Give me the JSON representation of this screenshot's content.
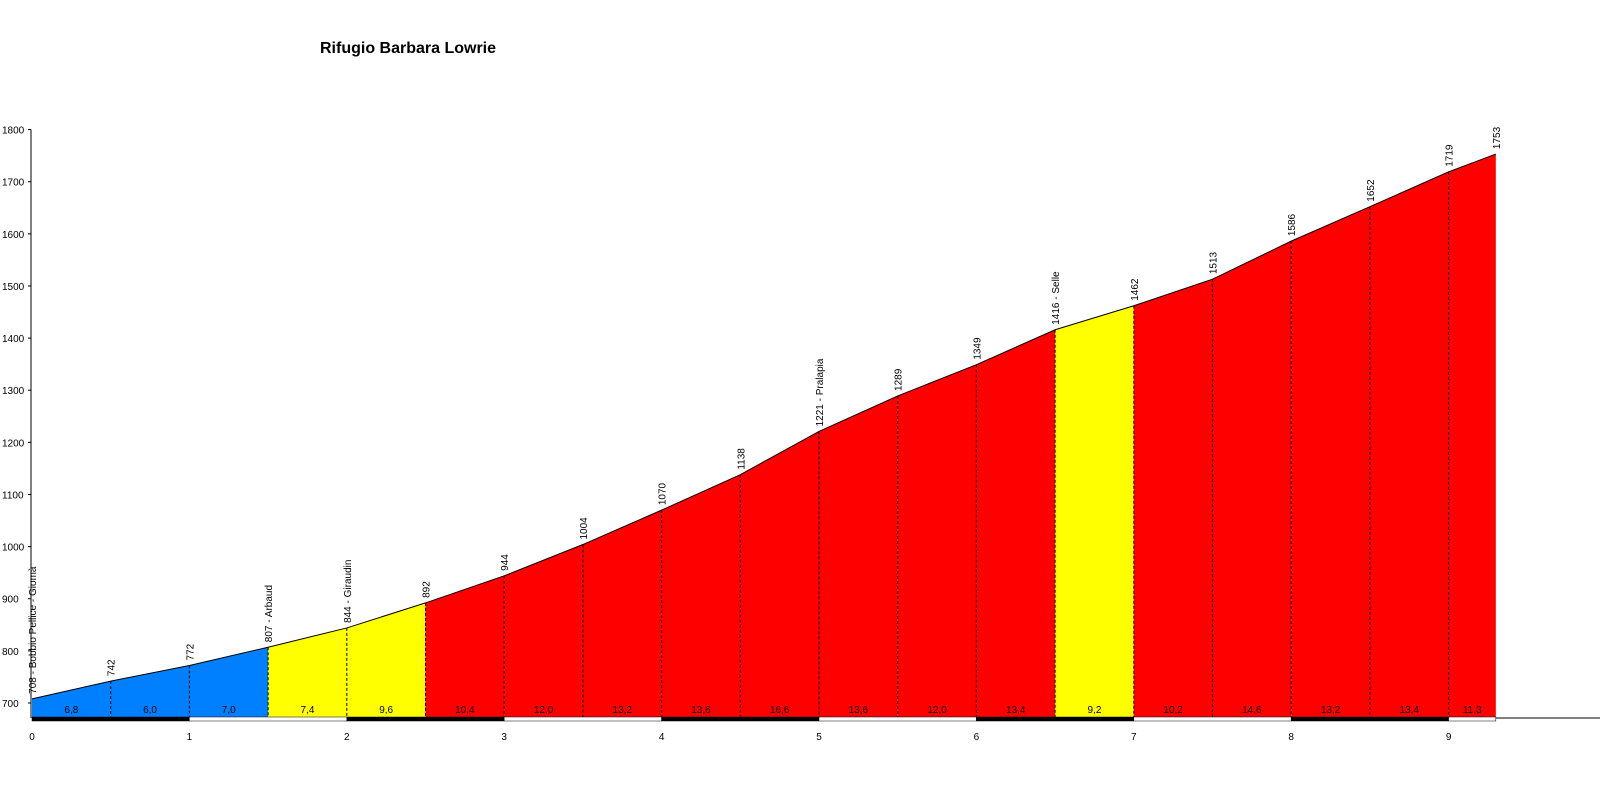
{
  "chart_data": {
    "type": "area",
    "title": "Rifugio Barbara Lowrie",
    "xlabel": "",
    "ylabel": "",
    "xlim": [
      0,
      9.75
    ],
    "ylim": [
      680,
      1800
    ],
    "y_ticks": [
      "700",
      "800",
      "900",
      "1000",
      "1100",
      "1200",
      "1300",
      "1400",
      "1500",
      "1600",
      "1700",
      "1800"
    ],
    "x_ticks": [
      "0",
      "1",
      "2",
      "3",
      "4",
      "5",
      "6",
      "7",
      "8",
      "9"
    ],
    "segment_colors": {
      "blue": "#0080ff",
      "yellow": "#ffff00",
      "red": "#ff0000"
    },
    "points": [
      {
        "x": 0.0,
        "y": 708,
        "label": "708 - Bobbio Pellice - Giomà"
      },
      {
        "x": 0.5,
        "y": 742,
        "label": "742"
      },
      {
        "x": 1.0,
        "y": 772,
        "label": "772"
      },
      {
        "x": 1.5,
        "y": 807,
        "label": "807 - Arbaud"
      },
      {
        "x": 2.0,
        "y": 844,
        "label": "844 - Giraudin"
      },
      {
        "x": 2.5,
        "y": 892,
        "label": "892"
      },
      {
        "x": 3.0,
        "y": 944,
        "label": "944"
      },
      {
        "x": 3.5,
        "y": 1004,
        "label": "1004"
      },
      {
        "x": 4.0,
        "y": 1070,
        "label": "1070"
      },
      {
        "x": 4.5,
        "y": 1138,
        "label": "1138"
      },
      {
        "x": 5.0,
        "y": 1221,
        "label": "1221 - Pralapia"
      },
      {
        "x": 5.5,
        "y": 1289,
        "label": "1289"
      },
      {
        "x": 6.0,
        "y": 1349,
        "label": "1349"
      },
      {
        "x": 6.5,
        "y": 1416,
        "label": "1416 - Selle"
      },
      {
        "x": 7.0,
        "y": 1462,
        "label": "1462"
      },
      {
        "x": 7.5,
        "y": 1513,
        "label": "1513"
      },
      {
        "x": 8.0,
        "y": 1586,
        "label": "1586"
      },
      {
        "x": 8.5,
        "y": 1652,
        "label": "1652"
      },
      {
        "x": 9.0,
        "y": 1719,
        "label": "1719"
      },
      {
        "x": 9.3,
        "y": 1753,
        "label": "1753"
      }
    ],
    "segments": [
      {
        "gradient": "6,8",
        "color": "blue"
      },
      {
        "gradient": "6,0",
        "color": "blue"
      },
      {
        "gradient": "7,0",
        "color": "blue"
      },
      {
        "gradient": "7,4",
        "color": "yellow"
      },
      {
        "gradient": "9,6",
        "color": "yellow"
      },
      {
        "gradient": "10,4",
        "color": "red"
      },
      {
        "gradient": "12,0",
        "color": "red"
      },
      {
        "gradient": "13,2",
        "color": "red"
      },
      {
        "gradient": "13,6",
        "color": "red"
      },
      {
        "gradient": "16,6",
        "color": "red"
      },
      {
        "gradient": "13,6",
        "color": "red"
      },
      {
        "gradient": "12,0",
        "color": "red"
      },
      {
        "gradient": "13,4",
        "color": "red"
      },
      {
        "gradient": "9,2",
        "color": "yellow"
      },
      {
        "gradient": "10,2",
        "color": "red"
      },
      {
        "gradient": "14,6",
        "color": "red"
      },
      {
        "gradient": "13,2",
        "color": "red"
      },
      {
        "gradient": "13,4",
        "color": "red"
      },
      {
        "gradient": "11,3",
        "color": "red"
      }
    ]
  }
}
